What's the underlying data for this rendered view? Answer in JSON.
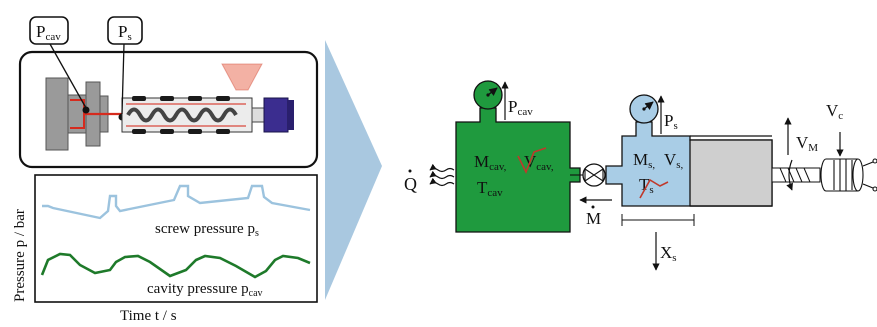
{
  "machine_labels": {
    "p_cav": "P",
    "p_cav_sub": "cav",
    "p_s": "P",
    "p_s_sub": "s"
  },
  "chart": {
    "ylabel": "Pressure p / bar",
    "xlabel": "Time t / s",
    "screw_label": "screw pressure p",
    "screw_label_sub": "s",
    "cavity_label": "cavity pressure p",
    "cavity_label_sub": "cav",
    "colors": {
      "screw": "#9cc3de",
      "cavity": "#1e7a2a"
    }
  },
  "model": {
    "q": "Q",
    "cavity_gauge": "P",
    "cavity_gauge_sub": "cav",
    "cavity_m": "M",
    "cavity_m_sub": "cav,",
    "cavity_v": "V",
    "cavity_v_sub": "cav,",
    "cavity_t": "T",
    "cavity_t_sub": "cav",
    "flow": "M",
    "screw_gauge": "P",
    "screw_gauge_sub": "s",
    "screw_m": "M",
    "screw_m_sub": "s,",
    "screw_v": "V",
    "screw_v_sub": "s,",
    "screw_t": "T",
    "screw_t_sub": "s",
    "xs": "X",
    "xs_sub": "s",
    "vm": "V",
    "vm_sub": "M",
    "vc": "V",
    "vc_sub": "c",
    "colors": {
      "cavity": "#1f9a3e",
      "screw": "#a9cde6",
      "piston": "#cfcfcf",
      "chevron": "#a9c8e0"
    }
  }
}
